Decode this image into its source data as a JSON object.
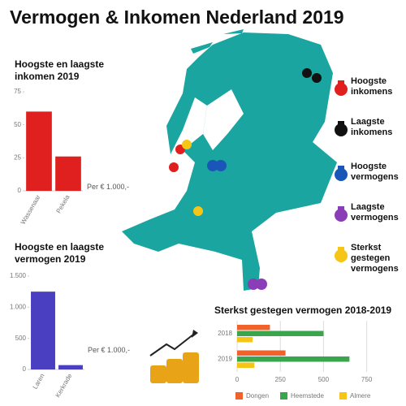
{
  "title": "Vermogen & Inkomen Nederland 2019",
  "map_legend": [
    {
      "label": "Hoogste inkomens",
      "color": "#e0201f"
    },
    {
      "label": "Laagste inkomens",
      "color": "#111111"
    },
    {
      "label": "Hoogste vermogens",
      "color": "#1a56b8"
    },
    {
      "label": "Laagste vermogens",
      "color": "#8a3db6"
    },
    {
      "label": "Sterkst gestegen vermogens",
      "color": "#f5c518"
    }
  ],
  "chart_data": [
    {
      "type": "bar",
      "title": "Hoogste en laagste inkomen 2019",
      "unit_label": "Per € 1.000,-",
      "categories": [
        "Wassenaar",
        "Pekela"
      ],
      "values": [
        60,
        26
      ],
      "color": "#e0201f",
      "ylim": [
        0,
        75
      ],
      "yticks": [
        0,
        25,
        50,
        75
      ]
    },
    {
      "type": "bar",
      "title": "Hoogste en laagste vermogen 2019",
      "unit_label": "Per € 1.000,-",
      "categories": [
        "Laren",
        "Kerkrade"
      ],
      "values": [
        1250,
        70
      ],
      "color": "#4a3fc0",
      "ylim": [
        0,
        1500
      ],
      "yticks": [
        0,
        500,
        {
          "value": 1000,
          "label": "1.000"
        },
        {
          "value": 1500,
          "label": "1.500"
        }
      ]
    },
    {
      "type": "hbar",
      "title": "Sterkst gestegen vermogen 2018-2019",
      "categories": [
        "2018",
        "2019"
      ],
      "series": [
        {
          "name": "Dongen",
          "color": "#f0622a",
          "values": [
            190,
            280
          ]
        },
        {
          "name": "Heemstede",
          "color": "#3aa64b",
          "values": [
            500,
            650
          ]
        },
        {
          "name": "Almere",
          "color": "#f5c518",
          "values": [
            90,
            100
          ]
        }
      ],
      "xlim": [
        0,
        780
      ],
      "xticks": [
        0,
        250,
        500,
        750
      ],
      "grid": true
    }
  ]
}
